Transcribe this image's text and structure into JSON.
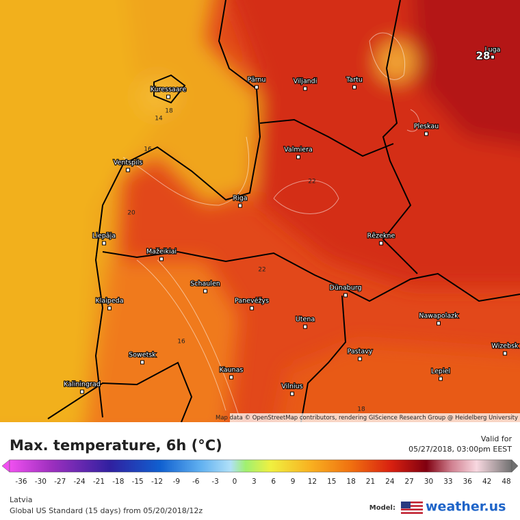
{
  "map": {
    "cities": [
      "Luga",
      "Pärnu",
      "Viljandi",
      "Tartu",
      "Kuressaare",
      "Pleskau",
      "Valmiera",
      "Ventspils",
      "Riga",
      "Rēzekne",
      "Liepāja",
      "Mažeikiai",
      "Schaulen",
      "Klaipeda",
      "Panevėžys",
      "Dünaburg",
      "Utena",
      "Nawapolazk",
      "Wizebsk",
      "Sowetsk",
      "Kaunas",
      "Pastavy",
      "Kaliningrad",
      "Vilnius",
      "Lepiel"
    ],
    "contour_labels": [
      28,
      20,
      22,
      22,
      16,
      18,
      16,
      18,
      14
    ],
    "attribution": "Map data © OpenStreetMap contributors, rendering GIScience Research Group @ Heidelberg University"
  },
  "legend": {
    "ticks": [
      -36,
      -30,
      -27,
      -24,
      -21,
      -18,
      -15,
      -12,
      -9,
      -6,
      -3,
      0,
      3,
      6,
      9,
      12,
      15,
      18,
      21,
      24,
      27,
      30,
      33,
      36,
      42,
      48
    ]
  },
  "footer": {
    "title": "Max. temperature, 6h (°C)",
    "valid_label": "Valid for",
    "valid_time": "05/27/2018, 03:00pm EEST",
    "region": "Latvia",
    "model_run": "Global US Standard (15 days) from 05/20/2018/12z",
    "model_label": "Model:",
    "brand": "weather.us"
  }
}
